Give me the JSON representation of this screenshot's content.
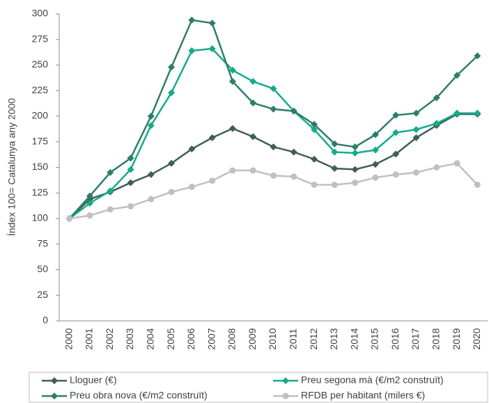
{
  "chart_data": {
    "type": "line",
    "y_label": "Índex 100= Catalunya any 2000",
    "categories": [
      "2000",
      "2001",
      "2002",
      "2003",
      "2004",
      "2005",
      "2006",
      "2007",
      "2008",
      "2009",
      "2010",
      "2011",
      "2012",
      "2013",
      "2014",
      "2015",
      "2016",
      "2017",
      "2018",
      "2019",
      "2020"
    ],
    "series": [
      {
        "name": "Lloguer (€)",
        "color": "#3f5f55",
        "marker": "diamond",
        "values": [
          100,
          119,
          126,
          135,
          143,
          154,
          168,
          179,
          188,
          180,
          170,
          165,
          158,
          149,
          148,
          153,
          163,
          179,
          191,
          202,
          202
        ]
      },
      {
        "name": "Preu segona mà (€/m2 construït)",
        "color": "#14ab8c",
        "marker": "diamond",
        "values": [
          100,
          115,
          127,
          148,
          191,
          223,
          264,
          266,
          245,
          234,
          227,
          205,
          187,
          165,
          164,
          167,
          184,
          187,
          193,
          203,
          203
        ]
      },
      {
        "name": "Preu obra nova (€/m2 construït)",
        "color": "#2e7d69",
        "marker": "diamond",
        "values": [
          100,
          122,
          145,
          159,
          200,
          248,
          294,
          291,
          234,
          213,
          207,
          205,
          192,
          173,
          170,
          182,
          201,
          203,
          218,
          240,
          259
        ]
      },
      {
        "name": "RFDB per habitant (milers €)",
        "color": "#c0c0c0",
        "marker": "circle",
        "values": [
          100,
          103,
          109,
          112,
          119,
          126,
          131,
          137,
          147,
          147,
          142,
          141,
          133,
          133,
          135,
          140,
          143,
          145,
          150,
          154,
          133
        ]
      }
    ],
    "ylim": [
      0,
      300
    ],
    "yticks": [
      0,
      25,
      50,
      75,
      100,
      125,
      150,
      175,
      200,
      225,
      250,
      275,
      300
    ],
    "grid": false
  }
}
